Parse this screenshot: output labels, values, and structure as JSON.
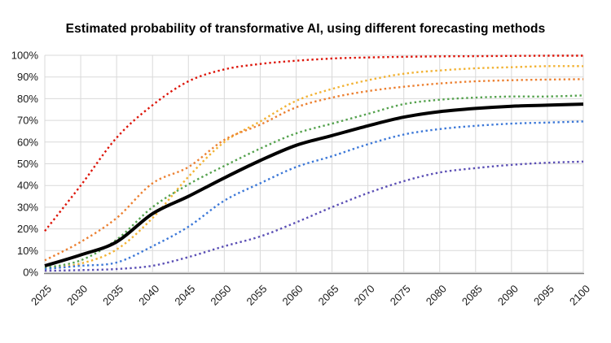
{
  "chart_data": {
    "type": "line",
    "title": "Estimated probability of transformative AI, using different forecasting methods",
    "xlabel": "",
    "ylabel": "",
    "xlim": [
      2025,
      2100
    ],
    "ylim": [
      0,
      100
    ],
    "grid": true,
    "legend": "none",
    "x_ticks": [
      2025,
      2030,
      2035,
      2040,
      2045,
      2050,
      2055,
      2060,
      2065,
      2070,
      2075,
      2080,
      2085,
      2090,
      2095,
      2100
    ],
    "x_tick_labels": [
      "2025",
      "2030",
      "2035",
      "2040",
      "2045",
      "2050",
      "2055",
      "2060",
      "2065",
      "2070",
      "2075",
      "2080",
      "2085",
      "2090",
      "2095",
      "2100"
    ],
    "y_ticks": [
      0,
      10,
      20,
      30,
      40,
      50,
      60,
      70,
      80,
      90,
      100
    ],
    "y_tick_labels": [
      "0%",
      "10%",
      "20%",
      "30%",
      "40%",
      "50%",
      "60%",
      "70%",
      "80%",
      "90%",
      "100%"
    ],
    "series": [
      {
        "name": "red-dotted",
        "color": "#dd1509",
        "line_style": "dotted",
        "line_width": 2.4,
        "values": [
          19,
          40,
          62,
          77,
          88,
          93.5,
          96,
          97.5,
          98.5,
          99,
          99.3,
          99.5,
          99.6,
          99.7,
          99.8,
          99.8
        ]
      },
      {
        "name": "gold-dotted",
        "color": "#f2b233",
        "line_style": "dotted",
        "line_width": 2.4,
        "values": [
          1.5,
          4,
          10.5,
          25,
          44,
          60,
          69.5,
          79,
          84.5,
          88.5,
          91.5,
          93,
          94,
          94.5,
          95,
          95
        ]
      },
      {
        "name": "orange-dotted",
        "color": "#ec8031",
        "line_style": "dotted",
        "line_width": 2.4,
        "values": [
          5.5,
          14,
          25,
          41,
          48.5,
          61,
          68,
          76,
          80.5,
          83.5,
          85.5,
          87,
          88,
          88.5,
          88.8,
          89
        ]
      },
      {
        "name": "green-dotted",
        "color": "#55a24e",
        "line_style": "dotted",
        "line_width": 2.4,
        "values": [
          2,
          5.5,
          15,
          30,
          40.5,
          49,
          57,
          64,
          68.5,
          73,
          77.5,
          79.5,
          80.5,
          81,
          81,
          81.5
        ]
      },
      {
        "name": "blue-dotted",
        "color": "#3c78d8",
        "line_style": "dotted",
        "line_width": 2.4,
        "values": [
          1.5,
          3,
          4.5,
          12,
          21,
          33,
          41,
          48.5,
          53.5,
          59,
          63.5,
          66,
          67.5,
          68.5,
          69,
          69.5
        ]
      },
      {
        "name": "purple-dotted",
        "color": "#5b4fb5",
        "line_style": "dotted",
        "line_width": 2.4,
        "values": [
          0.7,
          1,
          1.5,
          3,
          7,
          12,
          16.5,
          23,
          30,
          36.5,
          42,
          46,
          48,
          49.5,
          50.5,
          51
        ]
      },
      {
        "name": "black-solid-thick",
        "color": "#000000",
        "line_style": "solid",
        "line_width": 4,
        "values": [
          3,
          8,
          14,
          27,
          35,
          43.5,
          51.5,
          58.5,
          63,
          67.5,
          71.5,
          74,
          75.5,
          76.5,
          77,
          77.5
        ]
      }
    ]
  },
  "colors": {
    "background": "#ffffff",
    "gridline": "#d9d9d9",
    "axis_line": "#808080",
    "tick_text": "#1a1a1a",
    "title_text": "#000000"
  }
}
